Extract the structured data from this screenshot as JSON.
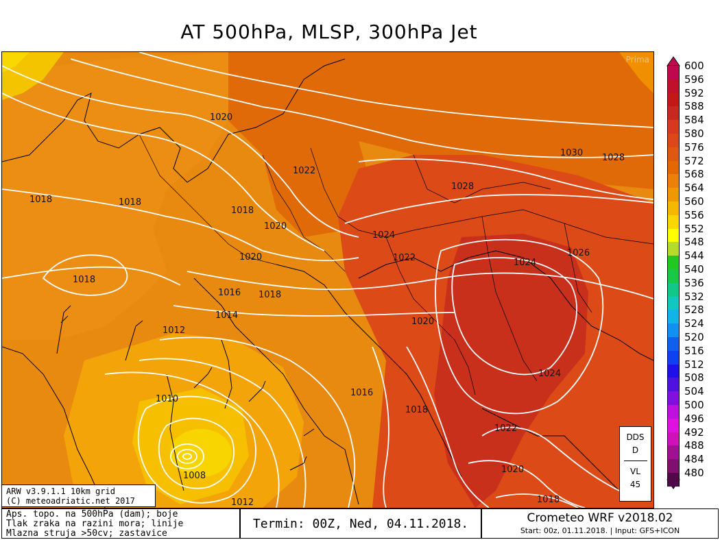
{
  "title": "AT 500hPa, MLSP, 300hPa Jet",
  "watermark": "Prima",
  "model_box": {
    "line1": "ARW v3.9.1.1 10km grid",
    "line2": "(C) meteoadriatic.net 2017"
  },
  "dds_box": {
    "top": "DDS",
    "mid": "D",
    "bottom1": "VL",
    "bottom2": "45"
  },
  "footer": {
    "legend_lines": [
      "Aps. topo. na 500hPa (dam); boje",
      "Tlak zraka na razini mora; linije",
      "Mlazna struja >50cv; zastavice"
    ],
    "termin": "Termin: 00Z, Ned, 04.11.2018.",
    "brand": "Crometeo WRF v2018.02",
    "start": "Start: 00z, 01.11.2018. | Input: GFS+ICON"
  },
  "legend": {
    "labels": [
      "600",
      "596",
      "592",
      "588",
      "584",
      "580",
      "576",
      "572",
      "568",
      "564",
      "560",
      "556",
      "552",
      "548",
      "544",
      "540",
      "536",
      "532",
      "528",
      "524",
      "520",
      "516",
      "512",
      "508",
      "504",
      "500",
      "496",
      "492",
      "488",
      "484",
      "480"
    ],
    "colors": [
      "#c00850",
      "#c0102a",
      "#c41818",
      "#c82820",
      "#d83820",
      "#dc4818",
      "#e05810",
      "#e46800",
      "#ec8008",
      "#f09800",
      "#f4b800",
      "#f8d800",
      "#ffff00",
      "#b4dc28",
      "#20c820",
      "#18c848",
      "#10c888",
      "#10c8c0",
      "#10b4e8",
      "#1090f0",
      "#1060f0",
      "#1040f0",
      "#2010e8",
      "#5010e0",
      "#8010e0",
      "#c010e0",
      "#e010e0",
      "#d010b8",
      "#a01090",
      "#801070",
      "#500848"
    ]
  },
  "map": {
    "pressure_labels": [
      {
        "text": "1020"
      },
      {
        "text": "1018"
      },
      {
        "text": "1018"
      },
      {
        "text": "1022"
      },
      {
        "text": "1018"
      },
      {
        "text": "1020"
      },
      {
        "text": "1028"
      },
      {
        "text": "1030"
      },
      {
        "text": "1028"
      },
      {
        "text": "1024"
      },
      {
        "text": "1022"
      },
      {
        "text": "1020"
      },
      {
        "text": "1018"
      },
      {
        "text": "1024"
      },
      {
        "text": "1026"
      },
      {
        "text": "1016"
      },
      {
        "text": "1018"
      },
      {
        "text": "1014"
      },
      {
        "text": "1012"
      },
      {
        "text": "1020"
      },
      {
        "text": "1010"
      },
      {
        "text": "1016"
      },
      {
        "text": "1018"
      },
      {
        "text": "1024"
      },
      {
        "text": "1022"
      },
      {
        "text": "1008"
      },
      {
        "text": "1020"
      },
      {
        "text": "1012"
      },
      {
        "text": "1018"
      }
    ]
  }
}
